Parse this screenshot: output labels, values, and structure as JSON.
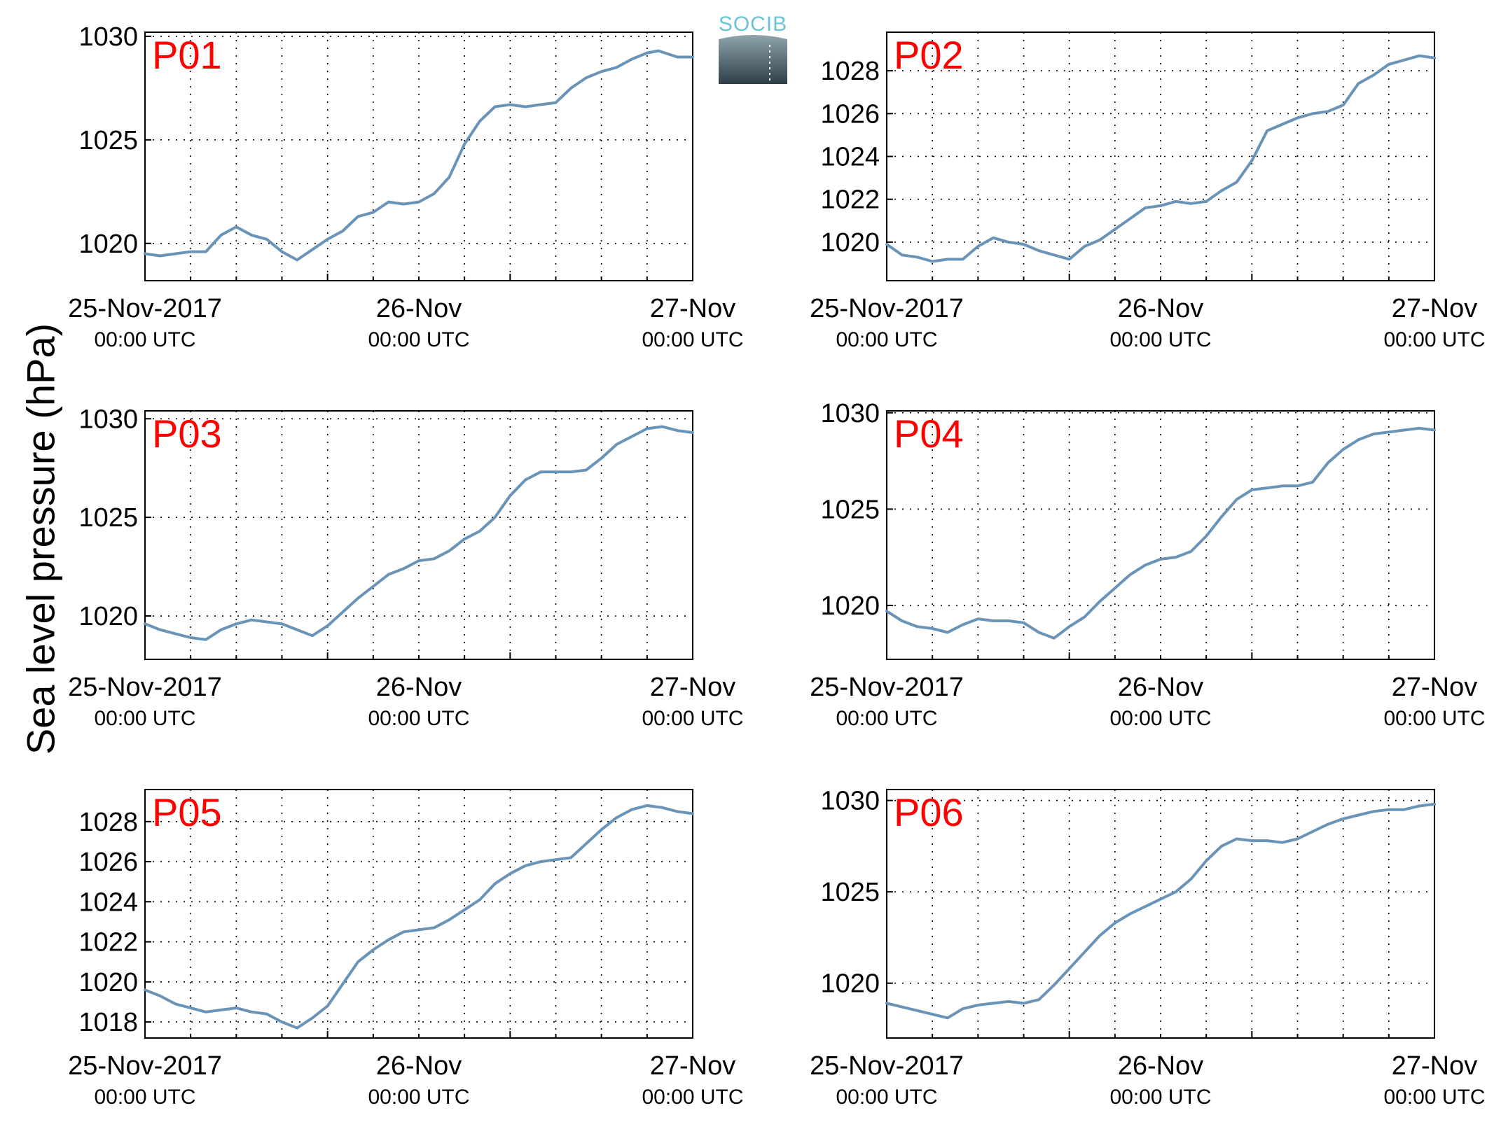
{
  "figure": {
    "ylabel": "Sea level pressure (hPa)",
    "logo_text": "SOCIB"
  },
  "colors": {
    "line": "#6a93b8",
    "label": "#ff0000",
    "grid": "#000000"
  },
  "chart_data": [
    {
      "type": "line",
      "title": "P01",
      "x_ticks": [
        {
          "top": "25-Nov-2017",
          "bottom": "00:00 UTC"
        },
        {
          "top": "26-Nov",
          "bottom": "00:00 UTC"
        },
        {
          "top": "27-Nov",
          "bottom": "00:00 UTC"
        }
      ],
      "ylim": [
        1018.2,
        1030.2
      ],
      "y_ticks": [
        1020,
        1025,
        1030
      ],
      "grid": true,
      "series": [
        {
          "x_hours": [
            0,
            2,
            4,
            6,
            8,
            10,
            12,
            14,
            16,
            18,
            20,
            22,
            24,
            26,
            28,
            30,
            32,
            34,
            36,
            38,
            40,
            42,
            44,
            46,
            48
          ],
          "values": [
            1019.5,
            1019.4,
            1019.5,
            1019.6,
            1019.6,
            1020.4,
            1020.8,
            1020.4,
            1020.2,
            1019.6,
            1019.2,
            1019.7,
            1020.2,
            1020.6,
            1021.3,
            1021.5,
            1022.0,
            1021.9,
            1022.0,
            1022.4,
            1023.2,
            1024.8,
            1025.9,
            1026.6,
            1026.7
          ]
        }
      ],
      "series_tail": {
        "x_hours": [
          50,
          52,
          54,
          56,
          58,
          60,
          62,
          64,
          66,
          67.5,
          70,
          72
        ],
        "values": [
          1026.6,
          1026.7,
          1026.8,
          1027.5,
          1028.0,
          1028.3,
          1028.5,
          1028.9,
          1029.2,
          1029.3,
          1029.0,
          1029.0
        ]
      }
    },
    {
      "type": "line",
      "title": "P02",
      "x_ticks": [
        {
          "top": "25-Nov-2017",
          "bottom": "00:00 UTC"
        },
        {
          "top": "26-Nov",
          "bottom": "00:00 UTC"
        },
        {
          "top": "27-Nov",
          "bottom": "00:00 UTC"
        }
      ],
      "ylim": [
        1018.2,
        1029.8
      ],
      "y_ticks": [
        1020,
        1022,
        1024,
        1026,
        1028
      ],
      "grid": true,
      "series": [
        {
          "x_hours": [
            0,
            2,
            4,
            6,
            8,
            10,
            12,
            14,
            16,
            18,
            20,
            22,
            24,
            26,
            28,
            30,
            32,
            34,
            36,
            38,
            40,
            42,
            44,
            46,
            48,
            50,
            52,
            54,
            56,
            58,
            60,
            62,
            64,
            66,
            68,
            70,
            72
          ],
          "values": [
            1019.9,
            1019.4,
            1019.3,
            1019.1,
            1019.2,
            1019.2,
            1019.8,
            1020.2,
            1020.0,
            1019.9,
            1019.6,
            1019.4,
            1019.2,
            1019.8,
            1020.1,
            1020.6,
            1021.1,
            1021.6,
            1021.7,
            1021.9,
            1021.8,
            1021.9,
            1022.4,
            1022.8,
            1023.8,
            1025.2,
            1025.5,
            1025.8,
            1026.0,
            1026.1,
            1026.4,
            1027.4,
            1027.8,
            1028.3,
            1028.5,
            1028.7,
            1028.6
          ]
        }
      ]
    },
    {
      "type": "line",
      "title": "P03",
      "x_ticks": [
        {
          "top": "25-Nov-2017",
          "bottom": "00:00 UTC"
        },
        {
          "top": "26-Nov",
          "bottom": "00:00 UTC"
        },
        {
          "top": "27-Nov",
          "bottom": "00:00 UTC"
        }
      ],
      "ylim": [
        1017.8,
        1030.4
      ],
      "y_ticks": [
        1020,
        1025,
        1030
      ],
      "grid": true,
      "series": [
        {
          "x_hours": [
            0,
            2,
            4,
            6,
            8,
            10,
            12,
            14,
            16,
            18,
            20,
            22,
            24,
            26,
            28,
            30,
            32,
            34,
            36,
            38,
            40,
            42,
            44,
            46,
            48,
            50,
            52,
            54,
            56,
            58,
            60,
            62,
            64,
            66,
            68,
            70,
            72
          ],
          "values": [
            1019.6,
            1019.3,
            1019.1,
            1018.9,
            1018.8,
            1019.3,
            1019.6,
            1019.8,
            1019.7,
            1019.6,
            1019.3,
            1019.0,
            1019.5,
            1020.2,
            1020.9,
            1021.5,
            1022.1,
            1022.4,
            1022.8,
            1022.9,
            1023.3,
            1023.9,
            1024.3,
            1025.0,
            1026.1,
            1026.9,
            1027.3,
            1027.3,
            1027.3,
            1027.4,
            1028.0,
            1028.7,
            1029.1,
            1029.5,
            1029.6,
            1029.4,
            1029.3
          ]
        }
      ]
    },
    {
      "type": "line",
      "title": "P04",
      "x_ticks": [
        {
          "top": "25-Nov-2017",
          "bottom": "00:00 UTC"
        },
        {
          "top": "26-Nov",
          "bottom": "00:00 UTC"
        },
        {
          "top": "27-Nov",
          "bottom": "00:00 UTC"
        }
      ],
      "ylim": [
        1017.2,
        1030.1
      ],
      "y_ticks": [
        1020,
        1025,
        1030
      ],
      "grid": true,
      "series": [
        {
          "x_hours": [
            0,
            2,
            4,
            6,
            8,
            10,
            12,
            14,
            16,
            18,
            20,
            22,
            24,
            26,
            28,
            30,
            32,
            34,
            36,
            38,
            40,
            42,
            44,
            46,
            48,
            50,
            52,
            54,
            56,
            58,
            60,
            62,
            64,
            66,
            68,
            70,
            72
          ],
          "values": [
            1019.7,
            1019.2,
            1018.9,
            1018.8,
            1018.6,
            1019.0,
            1019.3,
            1019.2,
            1019.2,
            1019.1,
            1018.6,
            1018.3,
            1018.9,
            1019.4,
            1020.2,
            1020.9,
            1021.6,
            1022.1,
            1022.4,
            1022.5,
            1022.8,
            1023.6,
            1024.6,
            1025.5,
            1026.0,
            1026.1,
            1026.2,
            1026.2,
            1026.4,
            1027.4,
            1028.1,
            1028.6,
            1028.9,
            1029.0,
            1029.1,
            1029.2,
            1029.1
          ]
        }
      ]
    },
    {
      "type": "line",
      "title": "P05",
      "x_ticks": [
        {
          "top": "25-Nov-2017",
          "bottom": "00:00 UTC"
        },
        {
          "top": "26-Nov",
          "bottom": "00:00 UTC"
        },
        {
          "top": "27-Nov",
          "bottom": "00:00 UTC"
        }
      ],
      "ylim": [
        1017.2,
        1029.6
      ],
      "y_ticks": [
        1018,
        1020,
        1022,
        1024,
        1026,
        1028
      ],
      "grid": true,
      "series": [
        {
          "x_hours": [
            0,
            2,
            4,
            6,
            8,
            10,
            12,
            14,
            16,
            18,
            20,
            22,
            24,
            26,
            28,
            30,
            32,
            34,
            36,
            38,
            40,
            42,
            44,
            46,
            48,
            50,
            52,
            54,
            56,
            58,
            60,
            62,
            64,
            66,
            68,
            70,
            72
          ],
          "values": [
            1019.6,
            1019.3,
            1018.9,
            1018.7,
            1018.5,
            1018.6,
            1018.7,
            1018.5,
            1018.4,
            1018.0,
            1017.7,
            1018.2,
            1018.8,
            1019.9,
            1021.0,
            1021.6,
            1022.1,
            1022.5,
            1022.6,
            1022.7,
            1023.1,
            1023.6,
            1024.1,
            1024.9,
            1025.4,
            1025.8,
            1026.0,
            1026.1,
            1026.2,
            1026.9,
            1027.6,
            1028.2,
            1028.6,
            1028.8,
            1028.7,
            1028.5,
            1028.4
          ]
        }
      ]
    },
    {
      "type": "line",
      "title": "P06",
      "x_ticks": [
        {
          "top": "25-Nov-2017",
          "bottom": "00:00 UTC"
        },
        {
          "top": "26-Nov",
          "bottom": "00:00 UTC"
        },
        {
          "top": "27-Nov",
          "bottom": "00:00 UTC"
        }
      ],
      "ylim": [
        1017.0,
        1030.6
      ],
      "y_ticks": [
        1020,
        1025,
        1030
      ],
      "grid": true,
      "series": [
        {
          "x_hours": [
            0,
            2,
            4,
            6,
            8,
            10,
            12,
            14,
            16,
            18,
            20,
            22,
            24,
            26,
            28,
            30,
            32,
            34,
            36,
            38,
            40,
            42,
            44,
            46,
            48,
            50,
            52,
            54,
            56,
            58,
            60,
            62,
            64,
            66,
            68,
            70,
            72
          ],
          "values": [
            1018.9,
            1018.7,
            1018.5,
            1018.3,
            1018.1,
            1018.6,
            1018.8,
            1018.9,
            1019.0,
            1018.9,
            1019.1,
            1019.9,
            1020.8,
            1021.7,
            1022.6,
            1023.3,
            1023.8,
            1024.2,
            1024.6,
            1025.0,
            1025.7,
            1026.7,
            1027.5,
            1027.9,
            1027.8,
            1027.8,
            1027.7,
            1027.9,
            1028.3,
            1028.7,
            1029.0,
            1029.2,
            1029.4,
            1029.5,
            1029.5,
            1029.7,
            1029.8
          ]
        }
      ]
    }
  ]
}
